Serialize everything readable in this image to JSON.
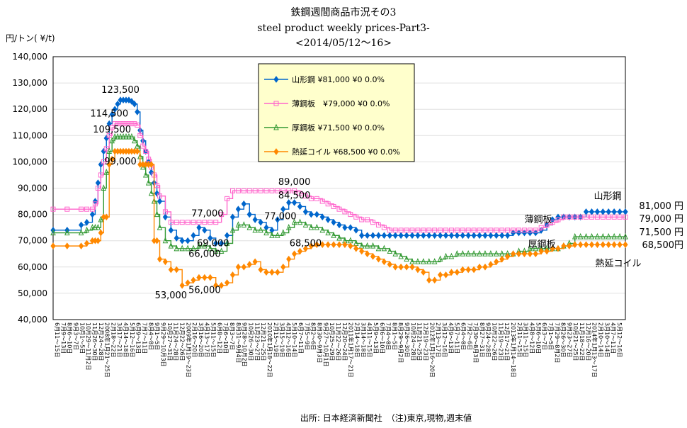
{
  "chart_data": {
    "type": "line",
    "title": "鉄鋼週間商品市況その3",
    "subtitle": "steel product weekly prices-Part3-",
    "period": "<2014/05/12～16>",
    "ylabel": "円/トン( ¥/t)",
    "ylim": [
      40000,
      140000
    ],
    "yticks": [
      "40,000",
      "50,000",
      "60,000",
      "70,000",
      "80,000",
      "90,000",
      "100,000",
      "110,000",
      "120,000",
      "130,000",
      "140,000"
    ],
    "source": "出所: 日本経済新聞社　（注)東京,現物,週末値",
    "legend_position": "top-center",
    "x": [
      0,
      5,
      10,
      12,
      14,
      15,
      16,
      17,
      18,
      19,
      20,
      21,
      22,
      23,
      24,
      25,
      26,
      27,
      28,
      29,
      30,
      31,
      32,
      33,
      34,
      35,
      36,
      37,
      38,
      40,
      42,
      44,
      46,
      48,
      50,
      52,
      54,
      56,
      58,
      60,
      62,
      64,
      66,
      68,
      70,
      72,
      74,
      76,
      78,
      80,
      82,
      84,
      86,
      88,
      90,
      92,
      94,
      96,
      98,
      100,
      102,
      104,
      106,
      108,
      110,
      112,
      114,
      116,
      118,
      120,
      122,
      124,
      126,
      128,
      130,
      132,
      134,
      136,
      138,
      140,
      142,
      144,
      146,
      148,
      150,
      152,
      154,
      156,
      158,
      160,
      162,
      164,
      166,
      168,
      170,
      172,
      174,
      176,
      178,
      180,
      182,
      184,
      186,
      188,
      190,
      192,
      194,
      196,
      198,
      200,
      202,
      204
    ],
    "series": [
      {
        "name": "山形鋼",
        "legend": "山形鋼 ¥81,000 ¥0 0.0%",
        "color": "#0066cc",
        "marker": "diamond",
        "values": [
          74000,
          74000,
          76000,
          77000,
          80000,
          85000,
          92000,
          99000,
          104000,
          109000,
          114500,
          118000,
          120000,
          122000,
          123500,
          123500,
          123500,
          123500,
          123000,
          122000,
          119000,
          112000,
          108000,
          104000,
          100000,
          96000,
          92000,
          88000,
          85000,
          79000,
          74000,
          71000,
          70000,
          70000,
          72000,
          75000,
          74000,
          71000,
          69000,
          69000,
          72000,
          79000,
          82000,
          84000,
          80000,
          78000,
          77000,
          75000,
          74000,
          78000,
          82000,
          84500,
          84500,
          83000,
          81000,
          80000,
          80000,
          79000,
          78000,
          77000,
          76000,
          75000,
          75000,
          74000,
          72000,
          72000,
          72000,
          72000,
          72000,
          72000,
          72000,
          72000,
          72000,
          72000,
          72000,
          72000,
          72000,
          72000,
          72000,
          72000,
          72000,
          72000,
          72000,
          72000,
          72000,
          72000,
          72000,
          72000,
          72000,
          72000,
          72000,
          73000,
          73000,
          73000,
          73000,
          73000,
          74000,
          76000,
          78000,
          79000,
          79000,
          79000,
          79000,
          79000,
          81000,
          81000,
          81000,
          81000,
          81000,
          81000,
          81000,
          81000
        ]
      },
      {
        "name": "薄鋼板",
        "legend": "薄鋼板　¥79,000 ¥0 0.0%",
        "color": "#ff66cc",
        "marker": "square",
        "values": [
          82000,
          82000,
          82000,
          82000,
          82000,
          84000,
          90000,
          95000,
          100000,
          105000,
          110000,
          113000,
          114500,
          114500,
          114500,
          114500,
          114500,
          114500,
          114500,
          114500,
          114000,
          110000,
          106000,
          104000,
          101000,
          98000,
          95000,
          91000,
          87000,
          81000,
          77000,
          77000,
          77000,
          77000,
          77000,
          77000,
          77000,
          77000,
          77000,
          80000,
          86000,
          89000,
          89000,
          89000,
          89000,
          89000,
          89000,
          89000,
          89000,
          89000,
          89000,
          89000,
          89000,
          88000,
          87000,
          86000,
          86000,
          85000,
          84000,
          83000,
          82000,
          81000,
          80000,
          79000,
          78000,
          78000,
          77000,
          76000,
          75000,
          74000,
          74000,
          74000,
          74000,
          74000,
          74000,
          74000,
          74000,
          74000,
          74000,
          74000,
          74000,
          74000,
          74000,
          74000,
          74000,
          74000,
          74000,
          74000,
          74000,
          74000,
          74000,
          74000,
          74000,
          74000,
          74000,
          74000,
          75000,
          76000,
          77000,
          78000,
          79000,
          79000,
          79000,
          79000,
          79000,
          79000,
          79000,
          79000,
          79000,
          79000,
          79000,
          79000
        ]
      },
      {
        "name": "厚鋼板",
        "legend": "厚鋼板 ¥71,500 ¥0 0.0%",
        "color": "#339933",
        "marker": "triangle",
        "values": [
          73000,
          73000,
          73000,
          74000,
          75000,
          75000,
          75000,
          78000,
          90000,
          96000,
          104000,
          108000,
          109500,
          109500,
          109500,
          109500,
          109500,
          109500,
          109500,
          108000,
          106000,
          102000,
          98000,
          95000,
          92000,
          88000,
          85000,
          80000,
          75000,
          70000,
          68000,
          67000,
          67000,
          67000,
          67000,
          68000,
          68000,
          67000,
          66000,
          66000,
          69000,
          74000,
          76000,
          76000,
          75000,
          74000,
          74000,
          73000,
          72000,
          72000,
          73000,
          75000,
          77000,
          77000,
          76000,
          75000,
          75000,
          74000,
          73000,
          72000,
          71000,
          70000,
          70000,
          69000,
          68000,
          68000,
          68000,
          67000,
          67000,
          66000,
          65000,
          64000,
          63000,
          62000,
          62000,
          62000,
          62000,
          62000,
          63000,
          64000,
          64000,
          65000,
          65000,
          65000,
          65000,
          65000,
          65000,
          65000,
          65000,
          65000,
          65000,
          65000,
          66000,
          66000,
          67000,
          67000,
          67000,
          67000,
          67000,
          67000,
          68000,
          69000,
          71500,
          71500,
          71500,
          71500,
          71500,
          71500,
          71500,
          71500,
          71500,
          71500
        ]
      },
      {
        "name": "熱延コイル",
        "legend": "熱延コイル ¥68,500 ¥0 0.0%",
        "color": "#ff8800",
        "marker": "diamond",
        "values": [
          68000,
          68000,
          68000,
          69000,
          70000,
          70000,
          70000,
          73000,
          79000,
          79000,
          99000,
          101000,
          104000,
          104000,
          104000,
          104000,
          104000,
          104000,
          104000,
          104000,
          104000,
          99000,
          99000,
          99000,
          99000,
          99000,
          70000,
          70000,
          63000,
          62000,
          59000,
          59000,
          53000,
          54000,
          55000,
          56000,
          56000,
          56000,
          53000,
          53000,
          54000,
          57000,
          60000,
          60000,
          61000,
          62000,
          59000,
          58000,
          58000,
          58000,
          60000,
          63000,
          65000,
          66000,
          67000,
          68000,
          68500,
          68500,
          68500,
          68500,
          68500,
          68500,
          68000,
          67000,
          66000,
          65000,
          64000,
          63000,
          62000,
          61000,
          60000,
          60000,
          60000,
          60000,
          59000,
          58000,
          55000,
          55000,
          57000,
          57000,
          58000,
          58000,
          59000,
          59000,
          59000,
          60000,
          60000,
          61000,
          62000,
          63000,
          64000,
          65000,
          65000,
          65000,
          65000,
          65000,
          66000,
          66000,
          67000,
          67000,
          68000,
          68000,
          68500,
          68500,
          68500,
          68500,
          68500,
          68500,
          68500,
          68500,
          68500,
          68500
        ]
      }
    ],
    "end_labels": [
      {
        "series": "山形鋼",
        "name": "山形鋼",
        "value": "81,000 円"
      },
      {
        "series": "薄鋼板",
        "name": "薄鋼板",
        "value": "79,000 円"
      },
      {
        "series": "厚鋼板",
        "name": "厚鋼板",
        "value": "71,500 円"
      },
      {
        "series": "熱延コイル",
        "name": "熱延コイル",
        "value": "68,500円"
      }
    ],
    "annotations": [
      {
        "text": "123,500",
        "x": 24,
        "y": 123500,
        "dy": -10
      },
      {
        "text": "114,500",
        "x": 20,
        "y": 114500,
        "dy": -10
      },
      {
        "text": "109,500",
        "x": 21,
        "y": 109500,
        "dy": -6
      },
      {
        "text": "99,000",
        "x": 24,
        "y": 99000,
        "dy": 0
      },
      {
        "text": "53,000",
        "x": 42,
        "y": 53000,
        "dy": 18
      },
      {
        "text": "56,000",
        "x": 54,
        "y": 56000,
        "dy": 22
      },
      {
        "text": "77,000",
        "x": 55,
        "y": 77000,
        "dy": -8
      },
      {
        "text": "69,000",
        "x": 57,
        "y": 69000,
        "dy": 4
      },
      {
        "text": "66,000",
        "x": 54,
        "y": 66000,
        "dy": 8
      },
      {
        "text": "89,000",
        "x": 86,
        "y": 89000,
        "dy": -8
      },
      {
        "text": "84,500",
        "x": 86,
        "y": 84500,
        "dy": -6
      },
      {
        "text": "77,000",
        "x": 81,
        "y": 77000,
        "dy": -4
      },
      {
        "text": "68,500",
        "x": 90,
        "y": 68500,
        "dy": 2
      }
    ],
    "xtick_labels": [
      "6月11～15日",
      "7月9～13日",
      "8月6～10日",
      "9月3～7日",
      "10月1～5日",
      "10月29～11月2日",
      "11月26～30日",
      "12月24～28日",
      "2008年1月21～25日",
      "2月18～22日",
      "3月17～21日",
      "4月14～18日",
      "5月12～16日",
      "6月9～13日",
      "7月7～11日",
      "8月4～8日",
      "9月1～5日",
      "9月29～10月3日",
      "10月27～31日",
      "11月24～28日",
      "12月22～26日",
      "2009年1月19～23日",
      "2月16～20日",
      "3月16～20日",
      "4月13～17日",
      "5月11～15日",
      "6月8～12日",
      "7月6～10日",
      "8月3～7日",
      "8月31～9月4日",
      "9月28～10月2日",
      "10月26～30日",
      "11月23～27日",
      "12月21～25日",
      "2010年1月18～22日",
      "2月15～19日",
      "3月15～19日",
      "4月12～16日",
      "5月10～14日",
      "6月7～11日",
      "7月5～9日",
      "8月2～6日",
      "8月30～9月3日",
      "9月27～10月1日",
      "10月25～29日",
      "11月22～26日",
      "12月20～24日",
      "2011年1月17～21日",
      "2月14～18日",
      "3月14～18日",
      "4月11～15日",
      "5月9～13日",
      "6月6～10日",
      "7月4～8日",
      "8月1～5日",
      "8月29～9月2日",
      "9月26～30日",
      "10月24～28日",
      "11月21～25日",
      "12月19～23日",
      "2012年1月16～20日",
      "2月13～17日",
      "3月12～16日",
      "4月9～13日",
      "5月7～11日",
      "6月4～8日",
      "7月2～6日",
      "7月30～8月3日",
      "8月27～31日",
      "9月24～28日",
      "10月22～26日",
      "11月19～23日",
      "12月17～21日",
      "2013年1月14～18日",
      "2月11～15日",
      "3月11～15日",
      "4月8～12日",
      "5月6～10日",
      "6月3～7日",
      "7月1～5日",
      "7月29～8月2日",
      "8月26～30日",
      "9月23～27日",
      "10月21～25日",
      "11月18～22日",
      "12月16～20日",
      "2014年1月13～17日",
      "2月10～14日",
      "3月10～14日",
      "4月7～11日",
      "5月12～16日"
    ]
  }
}
